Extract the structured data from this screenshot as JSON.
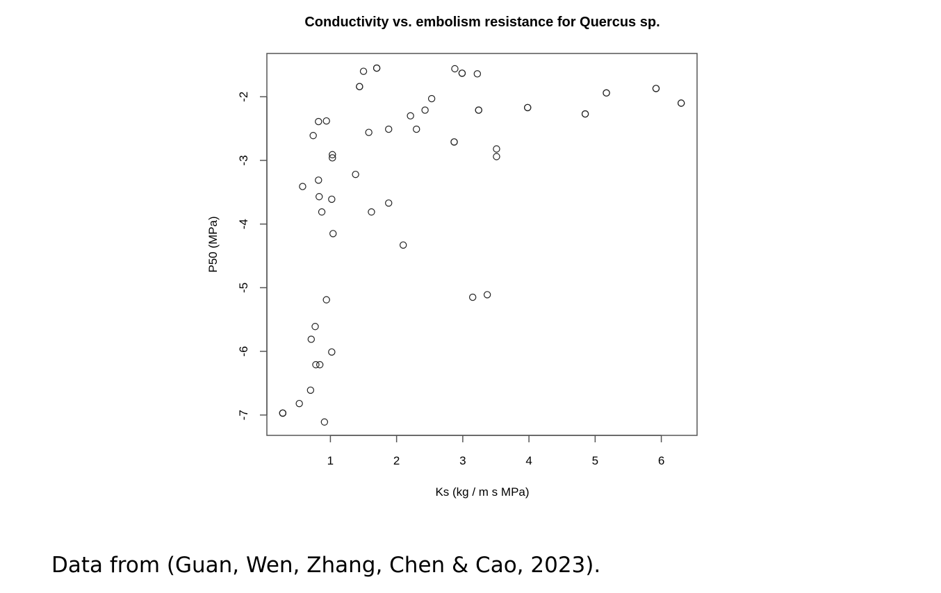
{
  "caption": "Data from (Guan, Wen, Zhang, Chen & Cao, 2023).",
  "chart_data": {
    "type": "scatter",
    "title": "Conductivity vs. embolism resistance for Quercus sp.",
    "xlabel": "Ks (kg / m s MPa)",
    "ylabel": "P50 (MPa)",
    "xlim": [
      0.04,
      6.54
    ],
    "ylim": [
      -7.32,
      -1.32
    ],
    "xticks": [
      1,
      2,
      3,
      4,
      5,
      6
    ],
    "yticks": [
      -2,
      -3,
      -4,
      -5,
      -6,
      -7
    ],
    "xtick_labels": [
      "1",
      "2",
      "3",
      "4",
      "5",
      "6"
    ],
    "ytick_labels": [
      "-2",
      "-3",
      "-4",
      "-5",
      "-6",
      "-7"
    ],
    "grid": false,
    "legend": "none",
    "marker": "open-circle",
    "points": [
      {
        "x": 1.5,
        "y": -1.6
      },
      {
        "x": 1.7,
        "y": -1.55
      },
      {
        "x": 1.7,
        "y": -1.55
      },
      {
        "x": 1.44,
        "y": -1.84
      },
      {
        "x": 1.44,
        "y": -1.84
      },
      {
        "x": 2.88,
        "y": -1.56
      },
      {
        "x": 2.99,
        "y": -1.63
      },
      {
        "x": 2.99,
        "y": -1.63
      },
      {
        "x": 3.22,
        "y": -1.64
      },
      {
        "x": 2.53,
        "y": -2.03
      },
      {
        "x": 2.43,
        "y": -2.21
      },
      {
        "x": 2.21,
        "y": -2.3
      },
      {
        "x": 3.24,
        "y": -2.21
      },
      {
        "x": 3.24,
        "y": -2.21
      },
      {
        "x": 3.98,
        "y": -2.17
      },
      {
        "x": 3.98,
        "y": -2.17
      },
      {
        "x": 4.85,
        "y": -2.27
      },
      {
        "x": 4.85,
        "y": -2.27
      },
      {
        "x": 5.17,
        "y": -1.94
      },
      {
        "x": 5.17,
        "y": -1.94
      },
      {
        "x": 5.92,
        "y": -1.87
      },
      {
        "x": 5.92,
        "y": -1.87
      },
      {
        "x": 6.3,
        "y": -2.1
      },
      {
        "x": 6.3,
        "y": -2.1
      },
      {
        "x": 0.82,
        "y": -2.39
      },
      {
        "x": 0.94,
        "y": -2.38
      },
      {
        "x": 0.74,
        "y": -2.61
      },
      {
        "x": 1.58,
        "y": -2.56
      },
      {
        "x": 1.88,
        "y": -2.51
      },
      {
        "x": 2.3,
        "y": -2.51
      },
      {
        "x": 2.87,
        "y": -2.71
      },
      {
        "x": 2.87,
        "y": -2.71
      },
      {
        "x": 3.51,
        "y": -2.82
      },
      {
        "x": 3.51,
        "y": -2.94
      },
      {
        "x": 1.03,
        "y": -2.91
      },
      {
        "x": 1.03,
        "y": -2.96
      },
      {
        "x": 1.38,
        "y": -3.22
      },
      {
        "x": 0.82,
        "y": -3.31
      },
      {
        "x": 0.58,
        "y": -3.41
      },
      {
        "x": 0.83,
        "y": -3.57
      },
      {
        "x": 1.02,
        "y": -3.61
      },
      {
        "x": 1.88,
        "y": -3.67
      },
      {
        "x": 0.87,
        "y": -3.81
      },
      {
        "x": 1.62,
        "y": -3.81
      },
      {
        "x": 1.04,
        "y": -4.15
      },
      {
        "x": 2.1,
        "y": -4.33
      },
      {
        "x": 0.94,
        "y": -5.19
      },
      {
        "x": 3.15,
        "y": -5.15
      },
      {
        "x": 3.37,
        "y": -5.11
      },
      {
        "x": 0.77,
        "y": -5.61
      },
      {
        "x": 0.71,
        "y": -5.81
      },
      {
        "x": 1.02,
        "y": -6.01
      },
      {
        "x": 0.78,
        "y": -6.21
      },
      {
        "x": 0.84,
        "y": -6.21
      },
      {
        "x": 0.7,
        "y": -6.61
      },
      {
        "x": 0.53,
        "y": -6.82
      },
      {
        "x": 0.28,
        "y": -6.97
      },
      {
        "x": 0.28,
        "y": -6.97
      },
      {
        "x": 0.28,
        "y": -6.97
      },
      {
        "x": 0.91,
        "y": -7.11
      }
    ]
  }
}
